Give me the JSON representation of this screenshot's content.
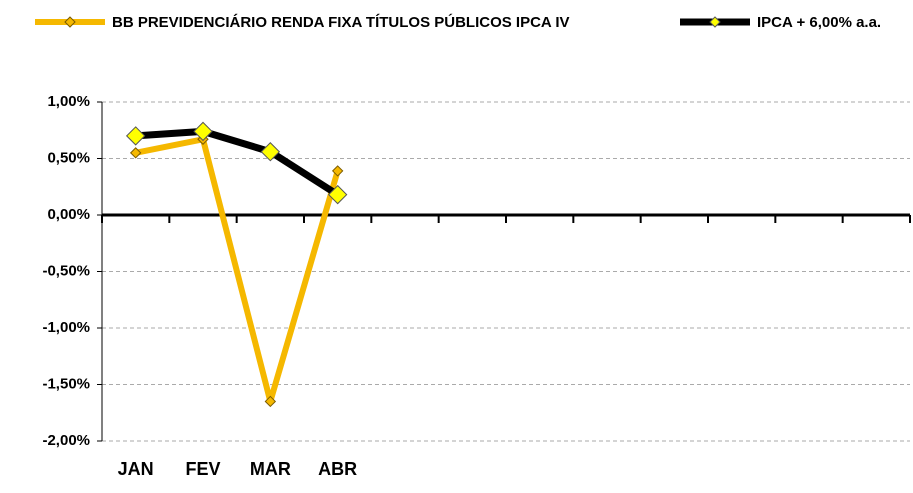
{
  "chart_data": {
    "type": "line",
    "categories": [
      "JAN",
      "FEV",
      "MAR",
      "ABR",
      null,
      null,
      null,
      null,
      null,
      null,
      null,
      null
    ],
    "series": [
      {
        "name": "BB PREVIDENCIÁRIO RENDA FIXA TÍTULOS PÚBLICOS IPCA IV",
        "color": "#f5b800",
        "values": [
          0.55,
          0.67,
          -1.65,
          0.39,
          null,
          null,
          null,
          null,
          null,
          null,
          null,
          null
        ]
      },
      {
        "name": "IPCA + 6,00% a.a.",
        "color": "#000000",
        "values": [
          0.7,
          0.74,
          0.56,
          0.18,
          null,
          null,
          null,
          null,
          null,
          null,
          null,
          null
        ]
      }
    ],
    "ylim": [
      -2,
      1
    ],
    "yticks": [
      {
        "value": 1,
        "label": "1,00%"
      },
      {
        "value": 0.5,
        "label": "0,50%"
      },
      {
        "value": 0,
        "label": "0,00%"
      },
      {
        "value": -0.5,
        "label": "-0,50%"
      },
      {
        "value": -1,
        "label": "-1,00%"
      },
      {
        "value": -1.5,
        "label": "-1,50%"
      },
      {
        "value": -2,
        "label": "-2,00%"
      }
    ],
    "grid": true,
    "legend": "top"
  }
}
